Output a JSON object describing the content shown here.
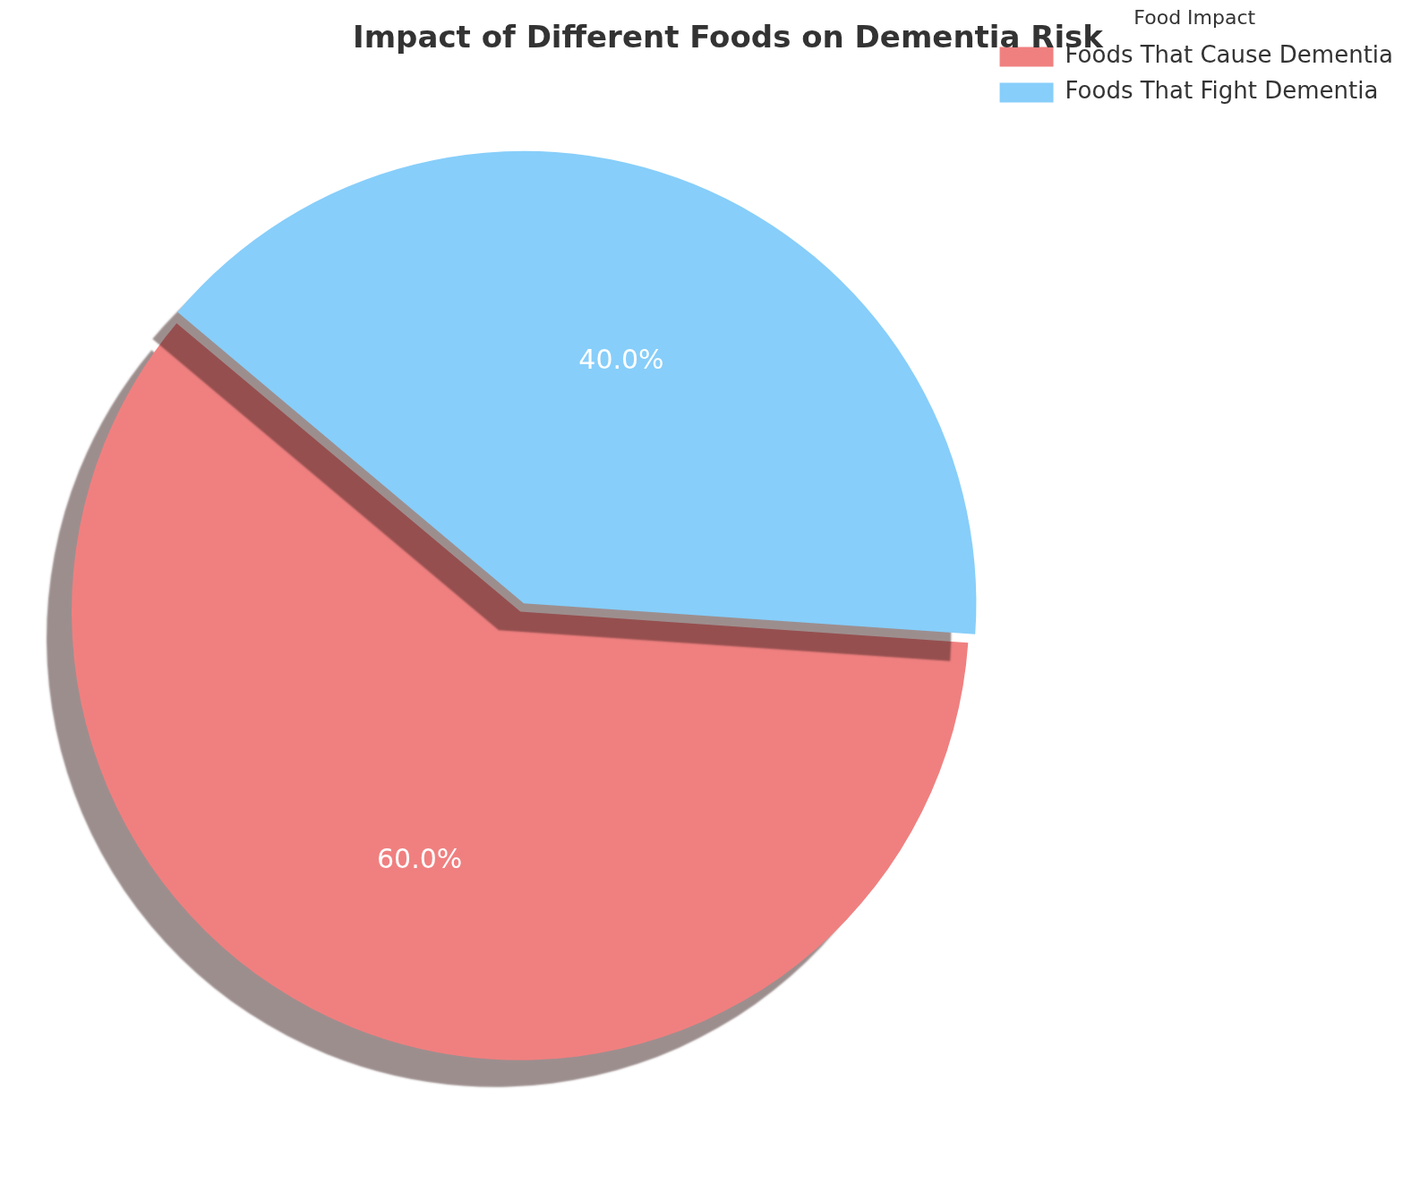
{
  "chart_data": {
    "type": "pie",
    "title": "Impact of Different Foods on Dementia Risk",
    "legend_title": "Food Impact",
    "categories": [
      "Foods That Cause Dementia",
      "Foods That Fight Dementia"
    ],
    "values": [
      60,
      40
    ],
    "value_labels": [
      "60.0%",
      "40.0%"
    ],
    "colors": [
      "#f08080",
      "#87cefa"
    ],
    "data_labels": true,
    "legend": "upper right"
  }
}
